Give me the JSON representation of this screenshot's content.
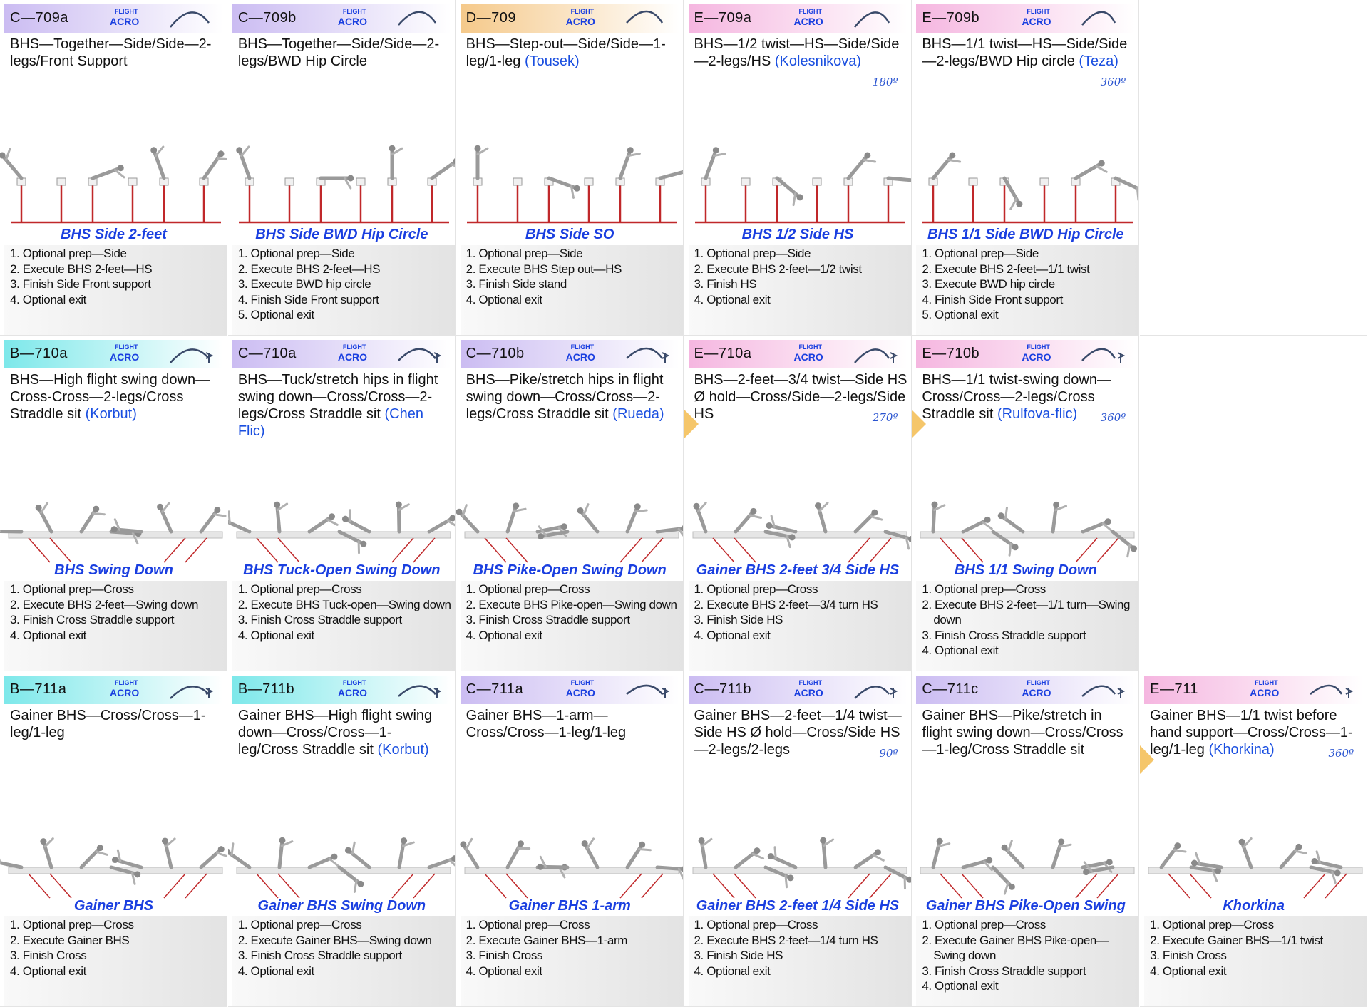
{
  "rows": [
    {
      "cells": [
        {
          "code": "C—709a",
          "color": "#cbbcf2",
          "badge": [
            "FLIGHT",
            "ACRO"
          ],
          "description": "BHS—Together—Side/Side—2-legs/Front Support",
          "title": "BHS Side 2-feet",
          "steps": [
            "1. Optional prep—Side",
            "2. Execute BHS 2-feet—HS",
            "3. Finish Side Front support",
            "4. Optional exit"
          ]
        },
        {
          "code": "C—709b",
          "color": "#cbbcf2",
          "badge": [
            "FLIGHT",
            "ACRO"
          ],
          "description": "BHS—Together—Side/Side—2-legs/BWD Hip Circle",
          "title": "BHS Side BWD Hip Circle",
          "steps": [
            "1. Optional prep—Side",
            "2. Execute BHS 2-feet—HS",
            "3. Execute BWD hip circle",
            "4. Finish Side Front support",
            "5. Optional exit"
          ]
        },
        {
          "code": "D—709",
          "color": "#f5c98a",
          "badge": [
            "FLIGHT",
            "ACRO"
          ],
          "description": "BHS—Step-out—Side/Side—1-leg/1-leg",
          "named": "(Tousek)",
          "title": "BHS Side SO",
          "steps": [
            "1. Optional prep—Side",
            "2. Execute BHS Step out—HS",
            "3. Finish Side stand",
            "4. Optional exit"
          ]
        },
        {
          "code": "E—709a",
          "color": "#f5b6e0",
          "badge": [
            "FLIGHT",
            "ACRO"
          ],
          "description": "BHS—1/2 twist—HS—Side/Side—2-legs/HS",
          "named": "(Kolesnikova)",
          "degree": "180º",
          "title": "BHS 1/2 Side HS",
          "steps": [
            "1. Optional prep—Side",
            "2. Execute BHS 2-feet—1/2 twist",
            "3. Finish HS",
            "4. Optional exit"
          ]
        },
        {
          "code": "E—709b",
          "color": "#f5b6e0",
          "badge": [
            "FLIGHT",
            "ACRO"
          ],
          "description": "BHS—1/1 twist—HS—Side/Side—2-legs/BWD Hip circle",
          "named": "(Teza)",
          "degree": "360º",
          "title": "BHS 1/1 Side BWD Hip Circle",
          "steps": [
            "1. Optional prep—Side",
            "2. Execute BHS 2-feet—1/1 twist",
            "3. Execute BWD hip circle",
            "4. Finish Side Front support",
            "5. Optional exit"
          ]
        },
        null
      ]
    },
    {
      "cells": [
        {
          "code": "B—710a",
          "color": "#7de8ea",
          "badge": [
            "FLIGHT",
            "ACRO"
          ],
          "description": "BHS—High flight swing down—Cross-Cross—2-legs/Cross Straddle sit",
          "named": "(Korbut)",
          "title": "BHS Swing Down",
          "steps": [
            "1. Optional prep—Cross",
            "2. Execute BHS 2-feet—Swing down",
            "3. Finish Cross Straddle support",
            "4. Optional exit"
          ]
        },
        {
          "code": "C—710a",
          "color": "#cbbcf2",
          "badge": [
            "FLIGHT",
            "ACRO"
          ],
          "description": "BHS—Tuck/stretch hips in flight swing down—Cross/Cross—2-legs/Cross Straddle sit",
          "named": "(Chen Flic)",
          "title": "BHS Tuck-Open Swing Down",
          "steps": [
            "1. Optional prep—Cross",
            "2. Execute BHS Tuck-open—Swing down",
            "3. Finish Cross Straddle support",
            "4. Optional exit"
          ]
        },
        {
          "code": "C—710b",
          "color": "#cbbcf2",
          "badge": [
            "FLIGHT",
            "ACRO"
          ],
          "description": "BHS—Pike/stretch hips in flight swing down—Cross/Cross—2-legs/Cross Straddle sit",
          "named": "(Rueda)",
          "title": "BHS Pike-Open Swing Down",
          "steps": [
            "1. Optional prep—Cross",
            "2. Execute BHS Pike-open—Swing down",
            "3. Finish Cross Straddle support",
            "4. Optional exit"
          ]
        },
        {
          "code": "E—710a",
          "color": "#f5b6e0",
          "badge": [
            "FLIGHT",
            "ACRO"
          ],
          "description": "BHS—2-feet—3/4 twist—Side HS Ø hold—Cross/Side—2-legs/Side HS",
          "degree": "270º",
          "marker": true,
          "title": "Gainer BHS 2-feet 3/4 Side HS",
          "steps": [
            "1. Optional prep—Cross",
            "2. Execute BHS 2-feet—3/4 turn HS",
            "3. Finish Side HS",
            "4. Optional exit"
          ]
        },
        {
          "code": "E—710b",
          "color": "#f5b6e0",
          "badge": [
            "FLIGHT",
            "ACRO"
          ],
          "description": "BHS—1/1 twist-swing down—Cross/Cross—2-legs/Cross Straddle sit",
          "named": "(Rulfova-flic)",
          "degree": "360º",
          "marker": true,
          "title": "BHS 1/1 Swing Down",
          "steps": [
            "1. Optional prep—Cross",
            "2. Execute BHS 2-feet—1/1 turn—Swing down",
            "3. Finish Cross Straddle support",
            "4. Optional exit"
          ]
        },
        null
      ]
    },
    {
      "cells": [
        {
          "code": "B—711a",
          "color": "#7de8ea",
          "badge": [
            "FLIGHT",
            "ACRO"
          ],
          "description": "Gainer BHS—Cross/Cross—1-leg/1-leg",
          "title": "Gainer BHS",
          "steps": [
            "1. Optional prep—Cross",
            "2. Execute Gainer BHS",
            "3. Finish Cross",
            "4. Optional exit"
          ]
        },
        {
          "code": "B—711b",
          "color": "#7de8ea",
          "badge": [
            "FLIGHT",
            "ACRO"
          ],
          "description": "Gainer BHS—High flight swing down—Cross/Cross—1-leg/Cross Straddle sit",
          "named": "(Korbut)",
          "title": "Gainer BHS Swing Down",
          "steps": [
            "1. Optional prep—Cross",
            "2. Execute Gainer BHS—Swing down",
            "3. Finish Cross Straddle support",
            "4. Optional exit"
          ]
        },
        {
          "code": "C—711a",
          "color": "#cbbcf2",
          "badge": [
            "FLIGHT",
            "ACRO"
          ],
          "description": "Gainer BHS—1-arm—Cross/Cross—1-leg/1-leg",
          "title": "Gainer BHS 1-arm",
          "steps": [
            "1. Optional prep—Cross",
            "2. Execute Gainer BHS—1-arm",
            "3. Finish Cross",
            "4. Optional exit"
          ]
        },
        {
          "code": "C—711b",
          "color": "#cbbcf2",
          "badge": [
            "FLIGHT",
            "ACRO"
          ],
          "description": "Gainer BHS—2-feet—1/4 twist—Side HS Ø hold—Cross/Side HS—2-legs/2-legs",
          "degree": "90º",
          "title": "Gainer BHS 2-feet 1/4 Side HS",
          "steps": [
            "1. Optional prep—Cross",
            "2. Execute BHS 2-feet—1/4 turn HS",
            "3. Finish Side HS",
            "4. Optional exit"
          ]
        },
        {
          "code": "C—711c",
          "color": "#cbbcf2",
          "badge": [
            "FLIGHT",
            "ACRO"
          ],
          "description": "Gainer BHS—Pike/stretch in flight swing down—Cross/Cross—1-leg/Cross Straddle sit",
          "title": "Gainer BHS Pike-Open Swing",
          "steps": [
            "1. Optional prep—Cross",
            "2. Execute Gainer BHS Pike-open—Swing down",
            "3. Finish Cross Straddle support",
            "4. Optional exit"
          ]
        },
        {
          "code": "E—711",
          "color": "#f5b6e0",
          "badge": [
            "FLIGHT",
            "ACRO"
          ],
          "description": "Gainer BHS—1/1 twist before hand support—Cross/Cross—1-leg/1-leg",
          "named": "(Khorkina)",
          "degree": "360º",
          "marker": true,
          "title": "Khorkina",
          "steps": [
            "1. Optional prep—Cross",
            "2. Execute Gainer BHS—1/1 twist",
            "3. Finish Cross",
            "4. Optional exit"
          ]
        }
      ]
    }
  ]
}
